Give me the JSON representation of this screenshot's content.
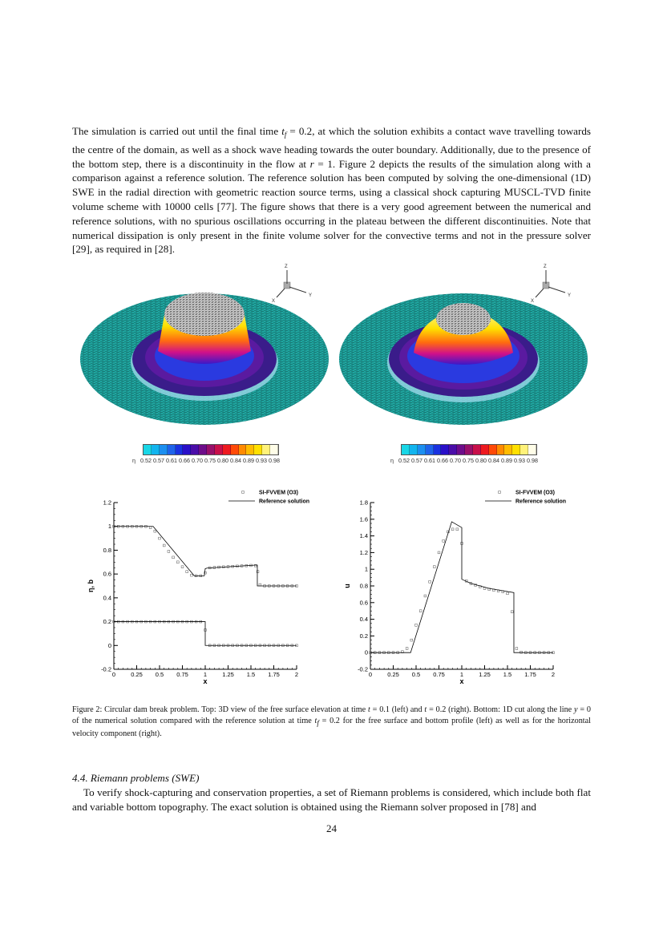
{
  "body": {
    "paragraph1": [
      {
        "text": "The simulation is carried out until the final time ",
        "style": "plain"
      },
      {
        "text": "t",
        "style": "italic"
      },
      {
        "text": "f",
        "style": "sub"
      },
      {
        "text": " = 0.2, at which the solution exhibits a contact wave travelling towards the centre of the domain, as well as a shock wave heading towards the outer boundary. Additionally, due to the presence of the bottom step, there is a discontinuity in the flow at ",
        "style": "plain"
      },
      {
        "text": "r",
        "style": "italic"
      },
      {
        "text": " = 1. Figure 2 depicts the results of the simulation along with a comparison against a reference solution. The reference solution has been computed by solving the one-dimensional (1D) SWE in the radial direction with geometric reaction source terms, using a classical shock capturing MUSCL-TVD finite volume scheme with 10000 cells [77].  The figure shows that there is a very good agreement between the numerical and reference solutions, with no spurious oscillations occurring in the plateau between the different discontinuities. Note that numerical dissipation is only present in the finite volume solver for the convective terms and not in the pressure solver [29], as required in [28].",
        "style": "plain"
      }
    ],
    "caption": [
      {
        "text": "Figure 2: Circular dam break problem. Top: 3D view of the free surface elevation at time ",
        "style": "plain"
      },
      {
        "text": "t",
        "style": "italic"
      },
      {
        "text": " = 0.1 (left) and ",
        "style": "plain"
      },
      {
        "text": "t",
        "style": "italic"
      },
      {
        "text": " = 0.2 (right). Bottom: 1D cut along the line ",
        "style": "plain"
      },
      {
        "text": "y",
        "style": "italic"
      },
      {
        "text": " = 0 of the numerical solution compared with the reference solution at time ",
        "style": "plain"
      },
      {
        "text": "t",
        "style": "italic"
      },
      {
        "text": "f",
        "style": "sub"
      },
      {
        "text": " = 0.2 for the free surface and bottom profile (left) as well as for the horizontal velocity component (right).",
        "style": "plain"
      }
    ],
    "section_heading": "4.4.  Riemann problems (SWE)",
    "paragraph2": [
      {
        "text": "To verify shock-capturing and conservation properties, a set of Riemann problems is considered, which include both flat and variable bottom topography. The exact solution is obtained using the Riemann solver proposed in [78] and",
        "style": "plain"
      }
    ],
    "page_number": "24"
  },
  "figures3d": {
    "axis_labels": {
      "z": "Z",
      "y": "Y",
      "x": "X"
    },
    "colorbar": {
      "variable": "η",
      "ticks": [
        "0.52",
        "0.57",
        "0.61",
        "0.66",
        "0.70",
        "0.75",
        "0.80",
        "0.84",
        "0.89",
        "0.93",
        "0.98"
      ],
      "colors": [
        "#19d6e6",
        "#12b4ee",
        "#1c8ff0",
        "#1f63ea",
        "#1a32e0",
        "#2a10c8",
        "#4a0da8",
        "#6e0d8a",
        "#98106a",
        "#c8104a",
        "#ee1a20",
        "#ff4a08",
        "#ff8a00",
        "#ffbb00",
        "#ffe000",
        "#fff27a",
        "#fffde8"
      ]
    },
    "panels": [
      {
        "time": "0.1"
      },
      {
        "time": "0.2"
      }
    ]
  },
  "chart_data": [
    {
      "type": "line",
      "xlabel": "x",
      "ylabel": "η, b",
      "xlim": [
        0,
        2
      ],
      "ylim": [
        -0.2,
        1.2
      ],
      "xticks": [
        "0",
        "0.25",
        "0.5",
        "0.75",
        "1",
        "1.25",
        "1.5",
        "1.75",
        "2"
      ],
      "yticks": [
        "-0.2",
        "0",
        "0.2",
        "0.4",
        "0.6",
        "0.8",
        "1",
        "1.2"
      ],
      "legend_placement": "top-right",
      "series": [
        {
          "name": "SI-FVVEM (O3)",
          "kind": "markers",
          "x": [
            0,
            0.05,
            0.1,
            0.15,
            0.2,
            0.25,
            0.3,
            0.35,
            0.4,
            0.45,
            0.5,
            0.55,
            0.6,
            0.65,
            0.7,
            0.75,
            0.8,
            0.85,
            0.9,
            0.95,
            1.0,
            1.05,
            1.1,
            1.15,
            1.2,
            1.25,
            1.3,
            1.35,
            1.4,
            1.45,
            1.5,
            1.55,
            1.575,
            1.6,
            1.65,
            1.7,
            1.75,
            1.8,
            1.85,
            1.9,
            1.95,
            2.0
          ],
          "y": [
            1,
            1,
            1,
            1,
            1,
            1,
            1,
            1,
            0.99,
            0.96,
            0.9,
            0.84,
            0.79,
            0.74,
            0.7,
            0.66,
            0.62,
            0.59,
            0.585,
            0.585,
            0.61,
            0.652,
            0.655,
            0.658,
            0.66,
            0.662,
            0.664,
            0.666,
            0.668,
            0.67,
            0.672,
            0.67,
            0.62,
            0.51,
            0.5,
            0.5,
            0.5,
            0.5,
            0.5,
            0.5,
            0.5,
            0.5
          ]
        },
        {
          "name": "SI-FVVEM (O3)",
          "kind": "markers",
          "x": [
            0,
            0.05,
            0.1,
            0.15,
            0.2,
            0.25,
            0.3,
            0.35,
            0.4,
            0.45,
            0.5,
            0.55,
            0.6,
            0.65,
            0.7,
            0.75,
            0.8,
            0.85,
            0.9,
            0.95,
            1.0,
            1.05,
            1.1,
            1.15,
            1.2,
            1.25,
            1.3,
            1.35,
            1.4,
            1.45,
            1.5,
            1.55,
            1.6,
            1.65,
            1.7,
            1.75,
            1.8,
            1.85,
            1.9,
            1.95,
            2.0
          ],
          "y": [
            0.2,
            0.2,
            0.2,
            0.2,
            0.2,
            0.2,
            0.2,
            0.2,
            0.2,
            0.2,
            0.2,
            0.2,
            0.2,
            0.2,
            0.2,
            0.2,
            0.2,
            0.2,
            0.2,
            0.2,
            0.13,
            0,
            0,
            0,
            0,
            0,
            0,
            0,
            0,
            0,
            0,
            0,
            0,
            0,
            0,
            0,
            0,
            0,
            0,
            0,
            0
          ]
        },
        {
          "name": "Reference solution",
          "kind": "line",
          "x": [
            0,
            0.43,
            0.88,
            0.99,
            1.0,
            1.02,
            1.55,
            1.57,
            1.57,
            2.0
          ],
          "y": [
            1,
            1,
            0.585,
            0.585,
            0.645,
            0.65,
            0.675,
            0.675,
            0.5,
            0.5
          ]
        },
        {
          "name": "Reference solution",
          "kind": "line",
          "x": [
            0,
            1.0,
            1.0,
            2.0
          ],
          "y": [
            0.2,
            0.2,
            0,
            0
          ]
        }
      ]
    },
    {
      "type": "line",
      "xlabel": "x",
      "ylabel": "u",
      "xlim": [
        0,
        2
      ],
      "ylim": [
        -0.2,
        1.8
      ],
      "xticks": [
        "0",
        "0.25",
        "0.5",
        "0.75",
        "1",
        "1.25",
        "1.5",
        "1.75",
        "2"
      ],
      "yticks": [
        "-0.2",
        "0",
        "0.2",
        "0.4",
        "0.6",
        "0.8",
        "1",
        "1.2",
        "1.4",
        "1.6",
        "1.8"
      ],
      "legend_placement": "top-right",
      "series": [
        {
          "name": "SI-FVVEM (O3)",
          "kind": "markers",
          "x": [
            0,
            0.05,
            0.1,
            0.15,
            0.2,
            0.25,
            0.3,
            0.35,
            0.4,
            0.45,
            0.5,
            0.55,
            0.6,
            0.65,
            0.7,
            0.75,
            0.8,
            0.85,
            0.9,
            0.95,
            1.0,
            1.05,
            1.1,
            1.15,
            1.2,
            1.25,
            1.3,
            1.35,
            1.4,
            1.45,
            1.5,
            1.55,
            1.6,
            1.65,
            1.7,
            1.75,
            1.8,
            1.85,
            1.9,
            1.95,
            2.0
          ],
          "y": [
            0,
            0,
            0,
            0,
            0,
            0,
            0,
            0.01,
            0.05,
            0.15,
            0.33,
            0.5,
            0.68,
            0.85,
            1.03,
            1.2,
            1.34,
            1.45,
            1.48,
            1.48,
            1.31,
            0.86,
            0.83,
            0.81,
            0.79,
            0.77,
            0.76,
            0.75,
            0.74,
            0.73,
            0.71,
            0.49,
            0.05,
            0.005,
            0,
            0,
            0,
            0,
            0,
            0,
            0
          ]
        },
        {
          "name": "Reference solution",
          "kind": "line",
          "x": [
            0,
            0.44,
            0.89,
            1.0,
            1.0,
            1.1,
            1.3,
            1.57,
            1.57,
            2.0
          ],
          "y": [
            0,
            0,
            1.57,
            1.5,
            0.88,
            0.83,
            0.77,
            0.72,
            0,
            0
          ]
        }
      ]
    }
  ]
}
